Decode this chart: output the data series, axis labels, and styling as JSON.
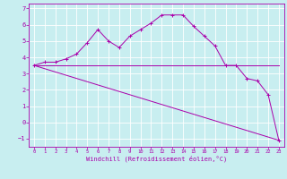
{
  "xlabel": "Windchill (Refroidissement éolien,°C)",
  "background_color": "#c8eef0",
  "line_color": "#aa00aa",
  "xlim": [
    -0.5,
    23.5
  ],
  "ylim": [
    -1.5,
    7.3
  ],
  "xticks": [
    0,
    1,
    2,
    3,
    4,
    5,
    6,
    7,
    8,
    9,
    10,
    11,
    12,
    13,
    14,
    15,
    16,
    17,
    18,
    19,
    20,
    21,
    22,
    23
  ],
  "yticks": [
    -1,
    0,
    1,
    2,
    3,
    4,
    5,
    6,
    7
  ],
  "curve1_x": [
    0,
    1,
    2,
    3,
    4,
    5,
    6,
    7,
    8,
    9,
    10,
    11,
    12,
    13,
    14,
    15,
    16,
    17,
    18,
    19,
    20,
    21,
    22,
    23
  ],
  "curve1_y": [
    3.5,
    3.7,
    3.7,
    3.9,
    4.2,
    4.9,
    5.7,
    5.0,
    4.6,
    5.3,
    5.7,
    6.1,
    6.6,
    6.6,
    6.6,
    5.9,
    5.3,
    4.7,
    3.5,
    3.5,
    2.7,
    2.55,
    1.7,
    -1.1
  ],
  "curve2_x": [
    0,
    19,
    20,
    21,
    22,
    23
  ],
  "curve2_y": [
    3.5,
    3.5,
    3.5,
    3.5,
    3.5,
    3.5
  ],
  "curve3_x": [
    0,
    23
  ],
  "curve3_y": [
    3.5,
    -1.1
  ],
  "xlabel_fontsize": 5,
  "tick_fontsize_x": 4,
  "tick_fontsize_y": 5
}
